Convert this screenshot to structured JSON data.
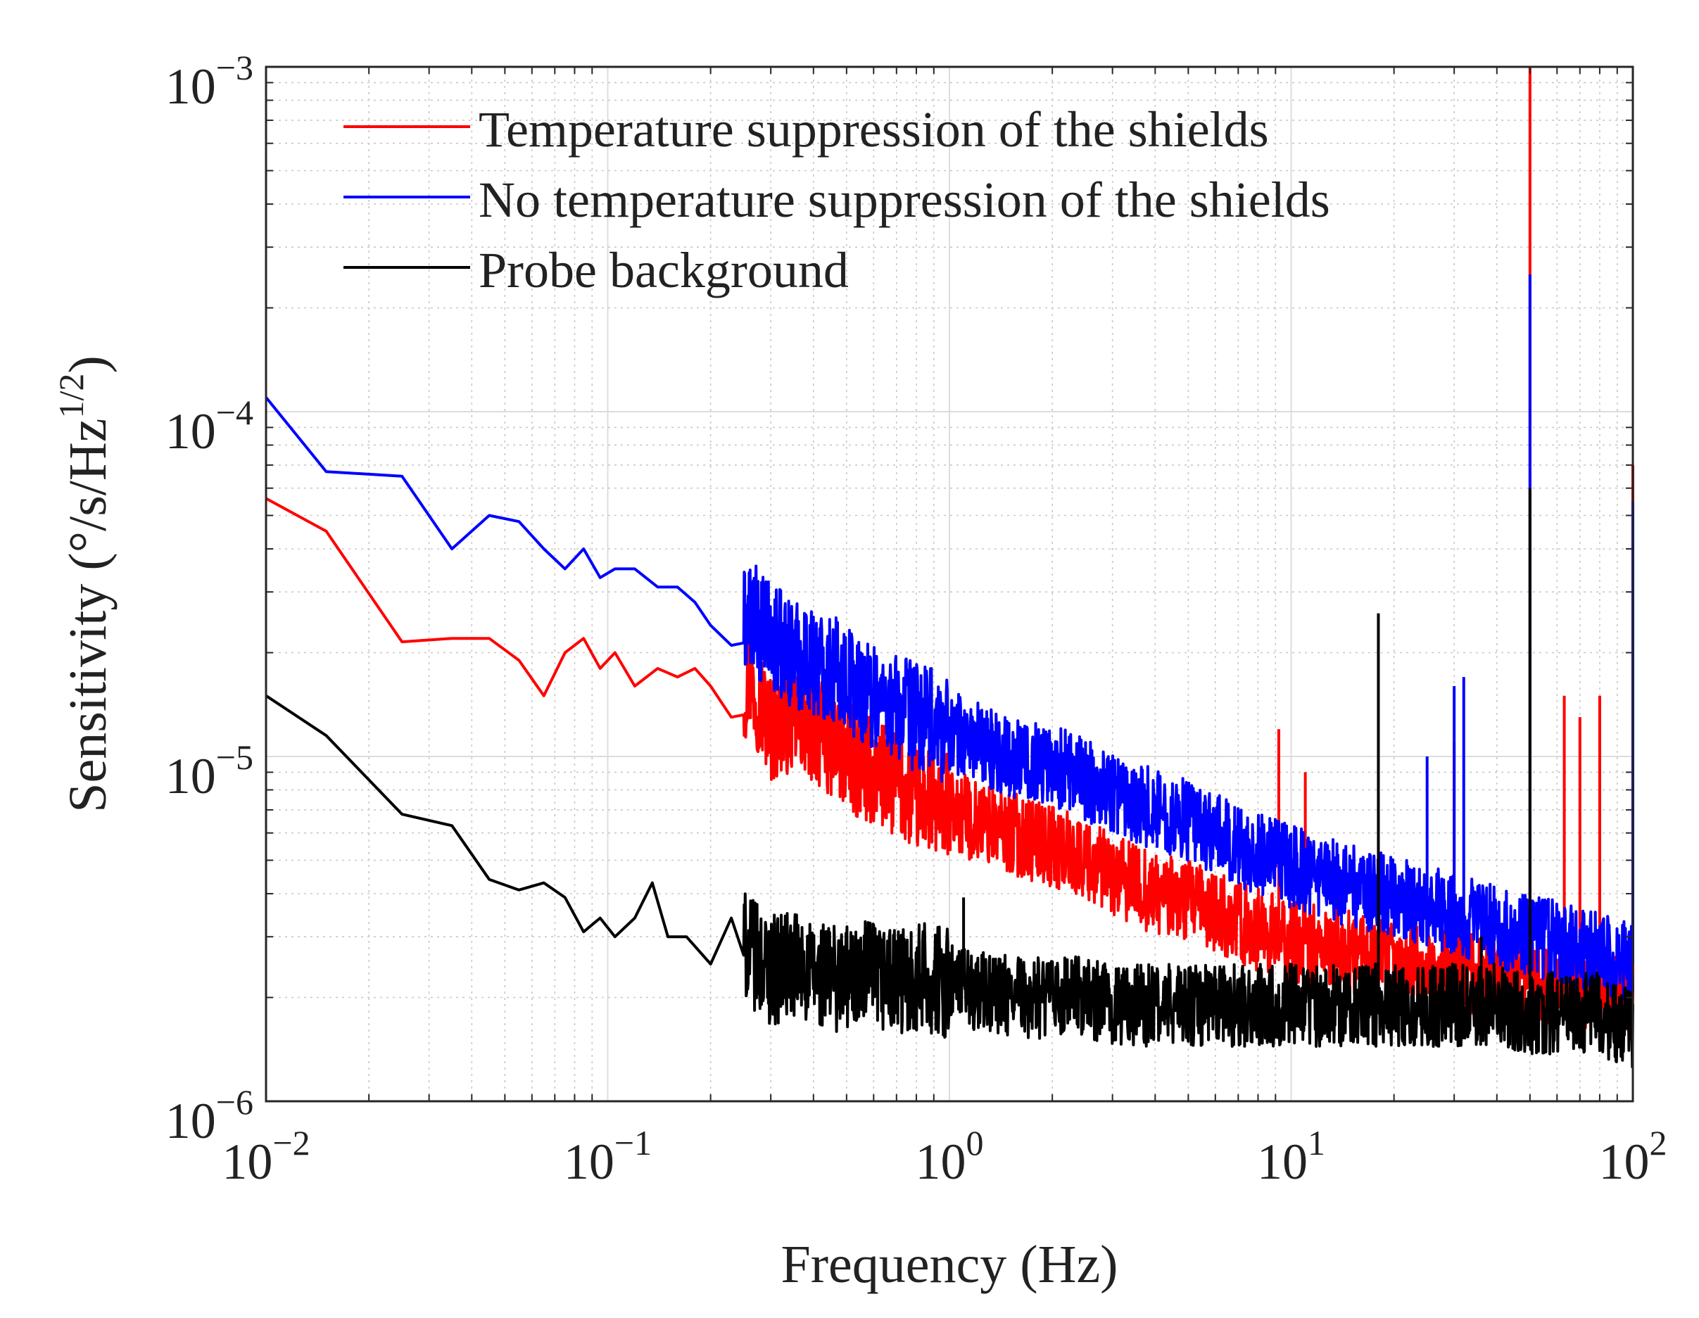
{
  "chart_data": {
    "type": "line",
    "title": "",
    "xlabel": "Frequency (Hz)",
    "ylabel_main": "Sensitivity (°/s/Hz",
    "ylabel_sup": "1/2",
    "ylabel_close": ")",
    "xscale": "log",
    "yscale": "log",
    "xlim": [
      0.01,
      100
    ],
    "ylim": [
      1e-06,
      0.001
    ],
    "grid": true,
    "legend_position": "top-left",
    "x_ticks": [
      {
        "value": 0.01,
        "base": "10",
        "exp": "−2"
      },
      {
        "value": 0.1,
        "base": "10",
        "exp": "−1"
      },
      {
        "value": 1,
        "base": "10",
        "exp": "0"
      },
      {
        "value": 10,
        "base": "10",
        "exp": "1"
      },
      {
        "value": 100,
        "base": "10",
        "exp": "2"
      }
    ],
    "y_ticks": [
      {
        "value": 1e-06,
        "base": "10",
        "exp": "−6"
      },
      {
        "value": 1e-05,
        "base": "10",
        "exp": "−5"
      },
      {
        "value": 0.0001,
        "base": "10",
        "exp": "−4"
      },
      {
        "value": 0.001,
        "base": "10",
        "exp": "−3"
      }
    ],
    "series": [
      {
        "name": "Temperature suppression of the shields",
        "color": "#ff0000",
        "x": [
          0.01,
          0.015,
          0.025,
          0.035,
          0.045,
          0.055,
          0.065,
          0.075,
          0.085,
          0.095,
          0.105,
          0.12,
          0.14,
          0.16,
          0.18,
          0.2,
          0.23,
          0.26,
          0.3,
          0.35,
          0.4,
          0.5,
          0.6,
          0.7,
          0.8,
          1.0,
          1.2,
          1.5,
          2.0,
          2.5,
          3.0,
          4.0,
          5.0,
          7.0,
          10,
          15,
          20,
          30,
          40,
          50,
          60,
          80,
          100
        ],
        "y": [
          5.6e-05,
          4.5e-05,
          2.15e-05,
          2.2e-05,
          2.2e-05,
          1.9e-05,
          1.5e-05,
          2e-05,
          2.2e-05,
          1.8e-05,
          2e-05,
          1.6e-05,
          1.8e-05,
          1.7e-05,
          1.8e-05,
          1.6e-05,
          1.3e-05,
          1.7e-05,
          1.2e-05,
          1.3e-05,
          1.2e-05,
          1e-05,
          9e-06,
          8.5e-06,
          7.5e-06,
          7e-06,
          6.5e-06,
          6e-06,
          5.5e-06,
          5e-06,
          4.5e-06,
          4e-06,
          3.8e-06,
          3.3e-06,
          2.9e-06,
          2.7e-06,
          2.5e-06,
          2.4e-06,
          2.3e-06,
          2.2e-06,
          2.2e-06,
          2.1e-06,
          2e-06
        ],
        "peaks": [
          {
            "x": 9.2,
            "y": 1.2e-05
          },
          {
            "x": 11,
            "y": 9e-06
          },
          {
            "x": 30,
            "y": 1.1e-05
          },
          {
            "x": 50,
            "y": 0.001
          },
          {
            "x": 63,
            "y": 1.5e-05
          },
          {
            "x": 70,
            "y": 1.3e-05
          },
          {
            "x": 80,
            "y": 1.5e-05
          },
          {
            "x": 100,
            "y": 7e-05
          }
        ]
      },
      {
        "name": "No temperature suppression of the shields",
        "color": "#0000ff",
        "x": [
          0.01,
          0.015,
          0.025,
          0.035,
          0.045,
          0.055,
          0.065,
          0.075,
          0.085,
          0.095,
          0.105,
          0.12,
          0.14,
          0.16,
          0.18,
          0.2,
          0.23,
          0.26,
          0.3,
          0.35,
          0.4,
          0.5,
          0.6,
          0.7,
          0.8,
          1.0,
          1.2,
          1.5,
          2.0,
          2.5,
          3.0,
          4.0,
          5.0,
          7.0,
          10,
          15,
          20,
          30,
          40,
          50,
          60,
          80,
          100
        ],
        "y": [
          0.00011,
          6.7e-05,
          6.5e-05,
          4e-05,
          5e-05,
          4.8e-05,
          4e-05,
          3.5e-05,
          4e-05,
          3.3e-05,
          3.5e-05,
          3.5e-05,
          3.1e-05,
          3.1e-05,
          2.8e-05,
          2.4e-05,
          2.1e-05,
          2.6e-05,
          2.2e-05,
          2e-05,
          1.9e-05,
          1.7e-05,
          1.5e-05,
          1.4e-05,
          1.3e-05,
          1.2e-05,
          1.1e-05,
          1e-05,
          9.5e-06,
          8.5e-06,
          8e-06,
          7e-06,
          6.5e-06,
          5.5e-06,
          4.8e-06,
          4.2e-06,
          3.9e-06,
          3.5e-06,
          3.2e-06,
          3e-06,
          2.9e-06,
          2.7e-06,
          2.5e-06
        ],
        "peaks": [
          {
            "x": 25,
            "y": 1e-05
          },
          {
            "x": 30,
            "y": 1.6e-05
          },
          {
            "x": 32,
            "y": 1.7e-05
          },
          {
            "x": 50,
            "y": 0.00025
          },
          {
            "x": 100,
            "y": 5.5e-05
          }
        ]
      },
      {
        "name": "Probe background",
        "color": "#000000",
        "x": [
          0.01,
          0.015,
          0.025,
          0.035,
          0.045,
          0.055,
          0.065,
          0.075,
          0.085,
          0.095,
          0.105,
          0.12,
          0.135,
          0.15,
          0.17,
          0.2,
          0.23,
          0.26,
          0.3,
          0.35,
          0.4,
          0.5,
          0.6,
          0.7,
          0.8,
          1.0,
          1.2,
          1.5,
          2.0,
          2.5,
          3.0,
          4.0,
          5.0,
          7.0,
          10,
          15,
          20,
          30,
          40,
          50,
          60,
          80,
          100
        ],
        "y": [
          1.5e-05,
          1.15e-05,
          6.8e-06,
          6.3e-06,
          4.4e-06,
          4.1e-06,
          4.3e-06,
          3.9e-06,
          3.1e-06,
          3.4e-06,
          3e-06,
          3.4e-06,
          4.3e-06,
          3e-06,
          3e-06,
          2.5e-06,
          3.4e-06,
          2.7e-06,
          2.4e-06,
          2.5e-06,
          2.3e-06,
          2.3e-06,
          2.3e-06,
          2.2e-06,
          2.3e-06,
          2.2e-06,
          2.1e-06,
          2e-06,
          2e-06,
          2e-06,
          1.9e-06,
          1.9e-06,
          1.9e-06,
          1.9e-06,
          1.9e-06,
          1.9e-06,
          1.9e-06,
          1.9e-06,
          1.9e-06,
          1.8e-06,
          1.8e-06,
          1.8e-06,
          1.6e-06
        ],
        "peaks": [
          {
            "x": 1.1,
            "y": 3.9e-06
          },
          {
            "x": 18,
            "y": 2.6e-05
          },
          {
            "x": 36,
            "y": 3e-06
          },
          {
            "x": 50,
            "y": 6e-05
          }
        ]
      }
    ]
  }
}
